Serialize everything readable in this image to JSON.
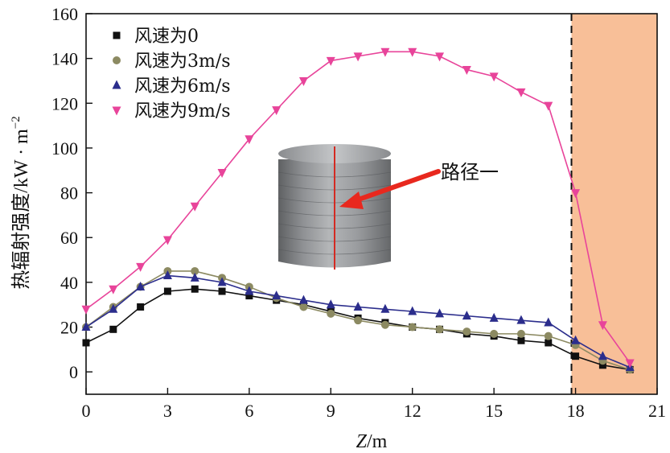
{
  "chart_data": {
    "type": "line",
    "xlabel_italic": "Z",
    "xlabel_unit": "/m",
    "ylabel_main": "热辐射强度/kW · m",
    "ylabel_sup": "−2",
    "xlim": [
      0,
      21
    ],
    "ylim": [
      -10,
      160
    ],
    "xticks": [
      0,
      3,
      6,
      9,
      12,
      15,
      18,
      21
    ],
    "yticks": [
      0,
      20,
      40,
      60,
      80,
      100,
      120,
      140,
      160
    ],
    "xtick_labels": [
      "0",
      "3",
      "6",
      "9",
      "12",
      "15",
      "18",
      "21"
    ],
    "ytick_labels": [
      "0",
      "20",
      "40",
      "60",
      "80",
      "100",
      "120",
      "140",
      "160"
    ],
    "grid": false,
    "legend_position": "top-left",
    "shaded_region": {
      "x_start": 17.85,
      "x_end": 21,
      "color": "#f8bf98",
      "boundary_line": "dashed"
    },
    "annotation": {
      "text": "路径一",
      "arrow_color": "#e8281e",
      "inset": "cylindrical-tank-image"
    },
    "series": [
      {
        "name": "风速为0",
        "marker": "square",
        "color": "#111111",
        "x": [
          0,
          1,
          2,
          3,
          4,
          5,
          6,
          7,
          8,
          9,
          10,
          11,
          12,
          13,
          14,
          15,
          16,
          17,
          18,
          19,
          20
        ],
        "y": [
          13,
          19,
          29,
          36,
          37,
          36,
          34,
          32,
          30,
          27,
          24,
          22,
          20,
          19,
          17,
          16,
          14,
          13,
          7,
          3,
          1
        ]
      },
      {
        "name": "风速为3m/s",
        "marker": "circle",
        "color": "#8c8a62",
        "x": [
          0,
          1,
          2,
          3,
          4,
          5,
          6,
          7,
          8,
          9,
          10,
          11,
          12,
          13,
          14,
          15,
          16,
          17,
          18,
          19,
          20
        ],
        "y": [
          20,
          29,
          38,
          45,
          45,
          42,
          38,
          33,
          29,
          26,
          23,
          21,
          20,
          19,
          18,
          17,
          17,
          16,
          12,
          5,
          1
        ]
      },
      {
        "name": "风速为6m/s",
        "marker": "triangle-up",
        "color": "#2b2d8c",
        "x": [
          0,
          1,
          2,
          3,
          4,
          5,
          6,
          7,
          8,
          9,
          10,
          11,
          12,
          13,
          14,
          15,
          16,
          17,
          18,
          19,
          20
        ],
        "y": [
          20,
          28,
          38,
          43,
          42,
          40,
          36,
          34,
          32,
          30,
          29,
          28,
          27,
          26,
          25,
          24,
          23,
          22,
          14,
          7,
          2
        ]
      },
      {
        "name": "风速为9m/s",
        "marker": "triangle-down",
        "color": "#e8449a",
        "x": [
          0,
          1,
          2,
          3,
          4,
          5,
          6,
          7,
          8,
          9,
          10,
          11,
          12,
          13,
          14,
          15,
          16,
          17,
          18,
          19,
          20
        ],
        "y": [
          28,
          37,
          47,
          59,
          74,
          89,
          104,
          117,
          130,
          139,
          141,
          143,
          143,
          141,
          135,
          132,
          125,
          119,
          80,
          21,
          4
        ]
      }
    ]
  }
}
